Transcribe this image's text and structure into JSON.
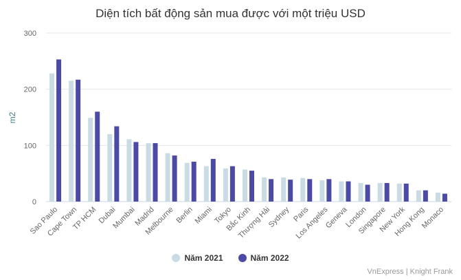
{
  "chart_data": {
    "type": "bar",
    "title": "Diện tích bất động sản mua được với một triệu USD",
    "xlabel": "",
    "ylabel": "m2",
    "ylim": [
      0,
      300
    ],
    "yticks": [
      0,
      100,
      200,
      300
    ],
    "grid": true,
    "legend_position": "bottom",
    "categories": [
      "Sao Paulo",
      "Cape Town",
      "TP HCM",
      "Dubai",
      "Mumbai",
      "Madrid",
      "Melbourne",
      "Berlin",
      "Miami",
      "Tokyo",
      "Bắc Kinh",
      "Thượng Hải",
      "Sydney",
      "Paris",
      "Los Angeles",
      "Geneva",
      "London",
      "Singapore",
      "New York",
      "Hong Kong",
      "Monaco"
    ],
    "series": [
      {
        "name": "Năm 2021",
        "color": "#c9dce4",
        "values": [
          228,
          215,
          149,
          120,
          111,
          104,
          86,
          69,
          63,
          59,
          57,
          43,
          43,
          42,
          38,
          36,
          33,
          33,
          32,
          20,
          16
        ]
      },
      {
        "name": "Năm 2022",
        "color": "#4c4aa8",
        "values": [
          253,
          217,
          160,
          134,
          106,
          104,
          82,
          71,
          76,
          63,
          55,
          40,
          39,
          40,
          40,
          36,
          30,
          33,
          32,
          20,
          14
        ]
      }
    ]
  },
  "source": "VnExpress | Knight Frank"
}
